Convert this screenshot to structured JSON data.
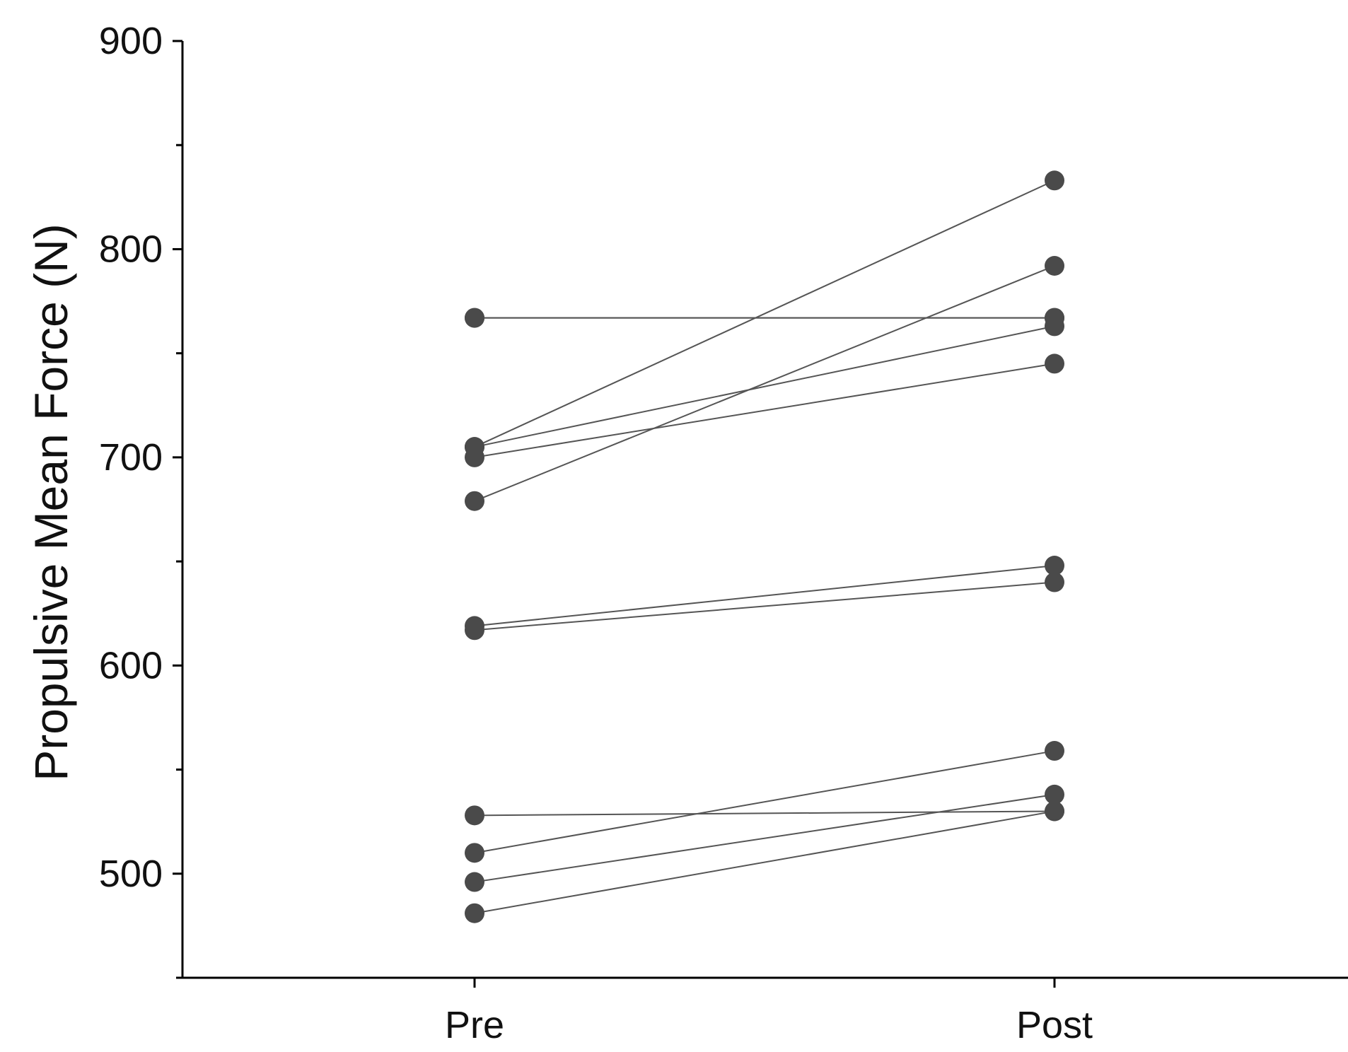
{
  "chart_data": {
    "type": "line",
    "xlabel": "",
    "ylabel": "Propulsive Mean Force (N)",
    "categories": [
      "Pre",
      "Post"
    ],
    "ylim": [
      450,
      900
    ],
    "yticks": [
      500,
      600,
      700,
      800,
      900
    ],
    "grid": false,
    "legend": "none",
    "colors": {
      "points": "#4a4a4a",
      "lines": "#555555",
      "axes": "#000000"
    },
    "series": [
      {
        "values": [
          767,
          767
        ]
      },
      {
        "values": [
          767,
          767
        ]
      },
      {
        "values": [
          705,
          833
        ]
      },
      {
        "values": [
          705,
          763
        ]
      },
      {
        "values": [
          700,
          745
        ]
      },
      {
        "values": [
          679,
          792
        ]
      },
      {
        "values": [
          619,
          648
        ]
      },
      {
        "values": [
          617,
          640
        ]
      },
      {
        "values": [
          528,
          530
        ]
      },
      {
        "values": [
          510,
          559
        ]
      },
      {
        "values": [
          496,
          538
        ]
      },
      {
        "values": [
          481,
          530
        ]
      }
    ]
  }
}
